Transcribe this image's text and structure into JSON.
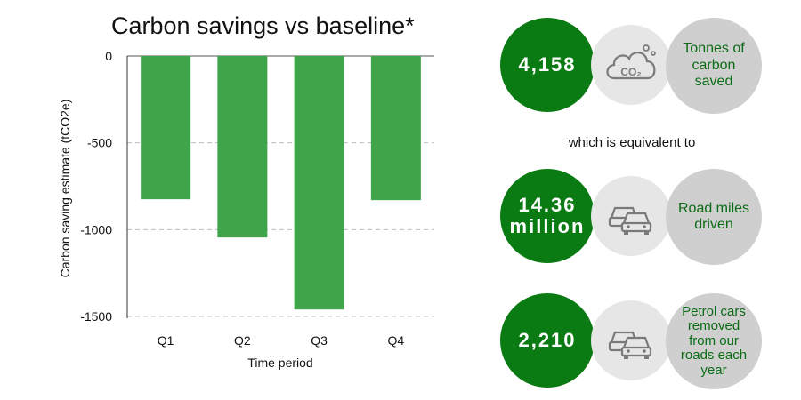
{
  "chart_data": {
    "type": "bar",
    "title": "Carbon savings vs baseline*",
    "xlabel": "Time period",
    "ylabel": "Carbon saving estimate (tCO2e)",
    "categories": [
      "Q1",
      "Q2",
      "Q3",
      "Q4"
    ],
    "values": [
      -825,
      -1045,
      -1460,
      -830
    ],
    "ylim": [
      -1500,
      0
    ],
    "yticks": [
      0,
      -500,
      -1000,
      -1500
    ],
    "ytick_labels": [
      "0",
      "-500",
      "-1000",
      "-1500"
    ],
    "grid": "horizontal dashed",
    "bar_color": "#3fa54a"
  },
  "stats": [
    {
      "value": "4,158",
      "icon": "co2-cloud-icon",
      "label": "Tonnes of\ncarbon\nsaved"
    },
    {
      "value": "14.36\nmillion",
      "icon": "cars-icon",
      "label": "Road miles\ndriven"
    },
    {
      "value": "2,210",
      "icon": "cars-icon",
      "label": "Petrol cars\nremoved\nfrom our\nroads each\nyear"
    }
  ],
  "equivalent_text": "which is equivalent to",
  "colors": {
    "stat_green": "#0a7a12",
    "label_green": "#0b6b14",
    "icon_bg": "#e6e6e6",
    "label_bg": "#cfcfcf",
    "icon_stroke": "#7a7a7a"
  }
}
